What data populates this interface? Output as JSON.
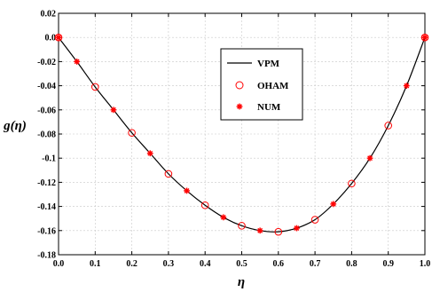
{
  "chart_data": {
    "type": "line",
    "xlabel": "η",
    "ylabel": "g(η)",
    "xlim": [
      0.0,
      1.0
    ],
    "ylim": [
      -0.18,
      0.02
    ],
    "x_ticks": [
      "0.0",
      "0.1",
      "0.2",
      "0.3",
      "0.4",
      "0.5",
      "0.6",
      "0.7",
      "0.8",
      "0.9",
      "1.0"
    ],
    "y_ticks": [
      "0.02",
      "0.0",
      "-0.02",
      "-0.04",
      "-0.06",
      "-0.08",
      "-0.1",
      "-0.12",
      "-0.14",
      "-0.16",
      "-0.18"
    ],
    "grid": true,
    "legend_position": "top-center",
    "series": [
      {
        "name": "VPM",
        "style": "line",
        "color": "#000000",
        "x": [
          0.0,
          0.05,
          0.1,
          0.15,
          0.2,
          0.25,
          0.3,
          0.35,
          0.4,
          0.45,
          0.5,
          0.55,
          0.6,
          0.65,
          0.7,
          0.75,
          0.8,
          0.85,
          0.9,
          0.95,
          1.0
        ],
        "y": [
          0.0,
          -0.02,
          -0.041,
          -0.06,
          -0.079,
          -0.096,
          -0.113,
          -0.127,
          -0.139,
          -0.149,
          -0.156,
          -0.16,
          -0.161,
          -0.158,
          -0.151,
          -0.138,
          -0.121,
          -0.1,
          -0.073,
          -0.04,
          0.0
        ]
      },
      {
        "name": "OHAM",
        "style": "open-circle",
        "color": "#ff0000",
        "x": [
          0.0,
          0.1,
          0.2,
          0.3,
          0.4,
          0.5,
          0.6,
          0.7,
          0.8,
          0.9,
          1.0
        ],
        "y": [
          0.0,
          -0.041,
          -0.079,
          -0.113,
          -0.139,
          -0.156,
          -0.161,
          -0.151,
          -0.121,
          -0.073,
          0.0
        ]
      },
      {
        "name": "NUM",
        "style": "asterisk",
        "color": "#ff0000",
        "x": [
          0.0,
          0.05,
          0.15,
          0.25,
          0.35,
          0.45,
          0.55,
          0.65,
          0.75,
          0.85,
          0.95,
          1.0
        ],
        "y": [
          0.0,
          -0.02,
          -0.06,
          -0.096,
          -0.127,
          -0.149,
          -0.16,
          -0.158,
          -0.138,
          -0.1,
          -0.04,
          0.0
        ]
      }
    ]
  }
}
